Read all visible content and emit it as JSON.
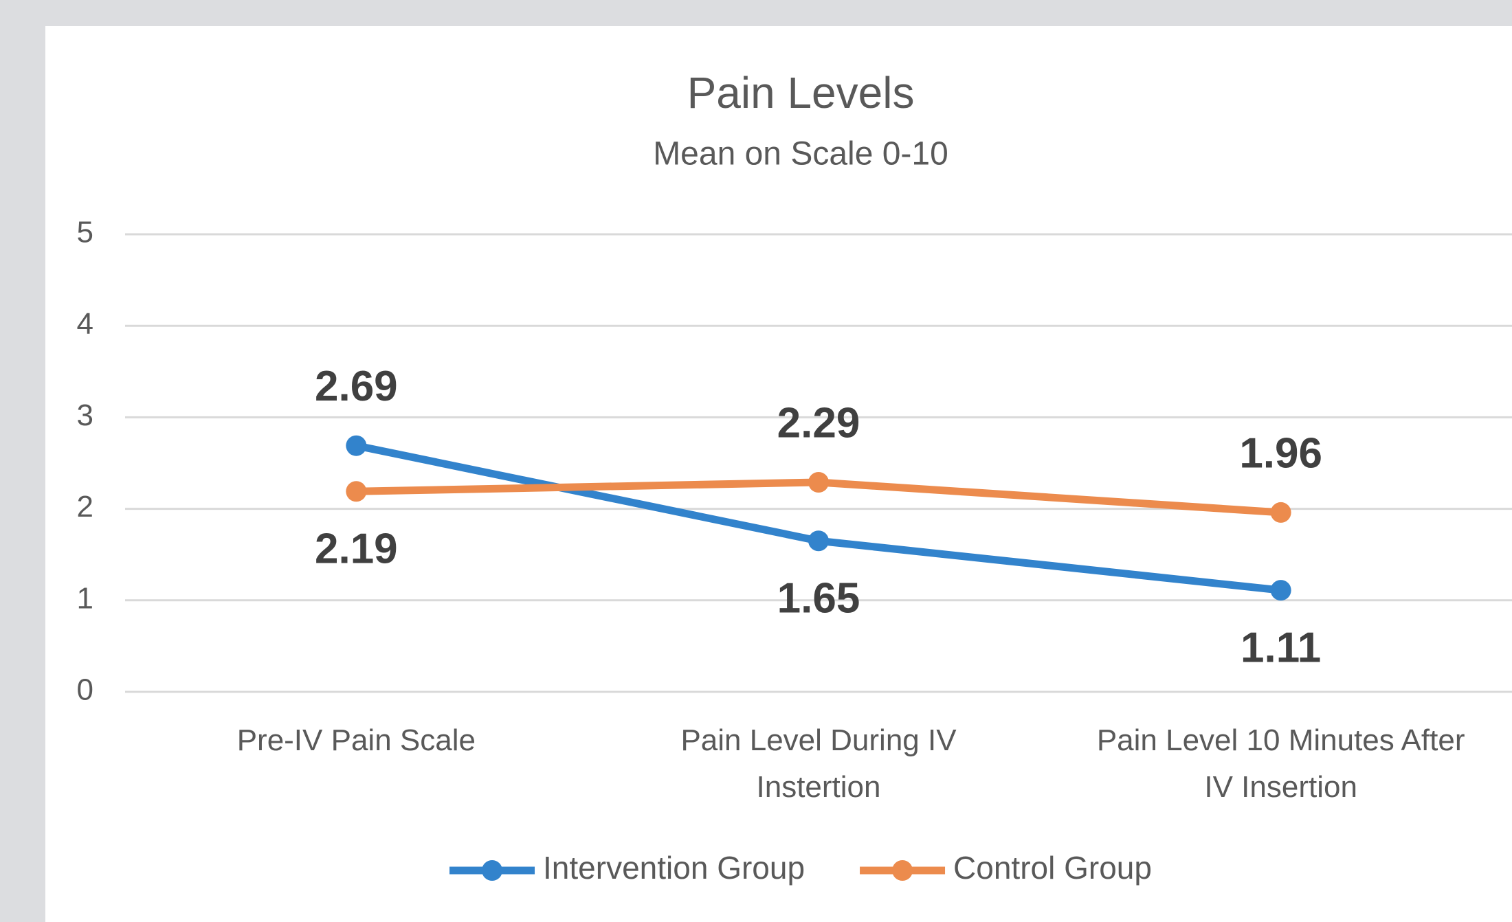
{
  "chart_data": {
    "type": "line",
    "title": "Pain Levels",
    "subtitle": "Mean on Scale 0-10",
    "categories": [
      "Pre-IV Pain Scale",
      "Pain Level During IV Instertion",
      "Pain Level 10 Minutes After IV Insertion"
    ],
    "series": [
      {
        "name": "Intervention Group",
        "color": "#3283cc",
        "values": [
          2.69,
          1.65,
          1.11
        ]
      },
      {
        "name": "Control Group",
        "color": "#ec8b4d",
        "values": [
          2.19,
          2.29,
          1.96
        ]
      }
    ],
    "ylim": [
      0,
      5
    ],
    "yticks": [
      0,
      1,
      2,
      3,
      4,
      5
    ],
    "grid": true,
    "legend": "bottom"
  }
}
